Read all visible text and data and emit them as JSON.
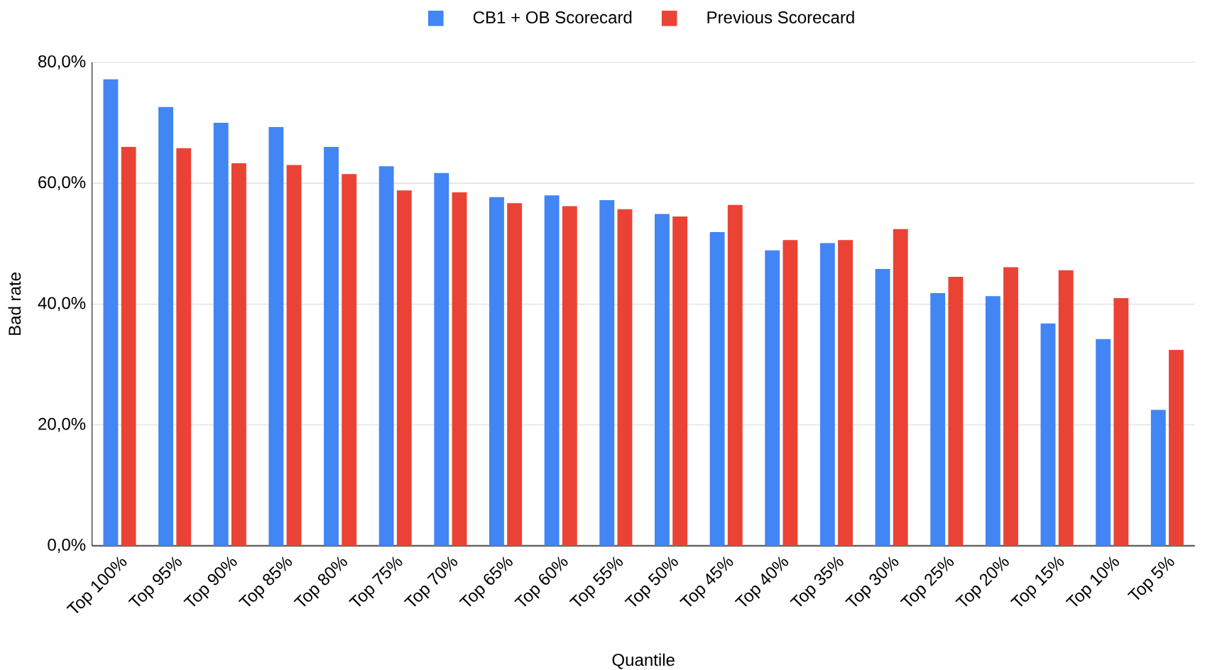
{
  "chart_data": {
    "type": "bar",
    "xlabel": "Quantile",
    "ylabel": "Bad rate",
    "categories": [
      "Top 100%",
      "Top 95%",
      "Top 90%",
      "Top 85%",
      "Top 80%",
      "Top 75%",
      "Top 70%",
      "Top 65%",
      "Top 60%",
      "Top 55%",
      "Top 50%",
      "Top 45%",
      "Top 40%",
      "Top 35%",
      "Top 30%",
      "Top 25%",
      "Top 20%",
      "Top 15%",
      "Top 10%",
      "Top 5%"
    ],
    "series": [
      {
        "name": "CB1 + OB Scorecard",
        "color": "#4285f4",
        "values": [
          77.2,
          72.6,
          70.0,
          69.3,
          66.0,
          62.8,
          61.7,
          57.7,
          58.0,
          57.2,
          54.9,
          51.9,
          48.9,
          50.1,
          45.8,
          41.8,
          41.3,
          36.8,
          34.2,
          22.5
        ]
      },
      {
        "name": "Previous Scorecard",
        "color": "#ea4335",
        "values": [
          66.0,
          65.8,
          63.3,
          63.0,
          61.5,
          58.8,
          58.5,
          56.7,
          56.2,
          55.7,
          54.5,
          56.4,
          50.6,
          50.6,
          52.4,
          44.5,
          46.1,
          45.6,
          41.0,
          32.4
        ]
      }
    ],
    "ylim": [
      0,
      80
    ],
    "yticks": [
      {
        "value": 0,
        "label": "0,0%"
      },
      {
        "value": 20,
        "label": "20,0%"
      },
      {
        "value": 40,
        "label": "40,0%"
      },
      {
        "value": 60,
        "label": "60,0%"
      },
      {
        "value": 80,
        "label": "80,0%"
      }
    ],
    "grid": "y",
    "legend": "top"
  }
}
